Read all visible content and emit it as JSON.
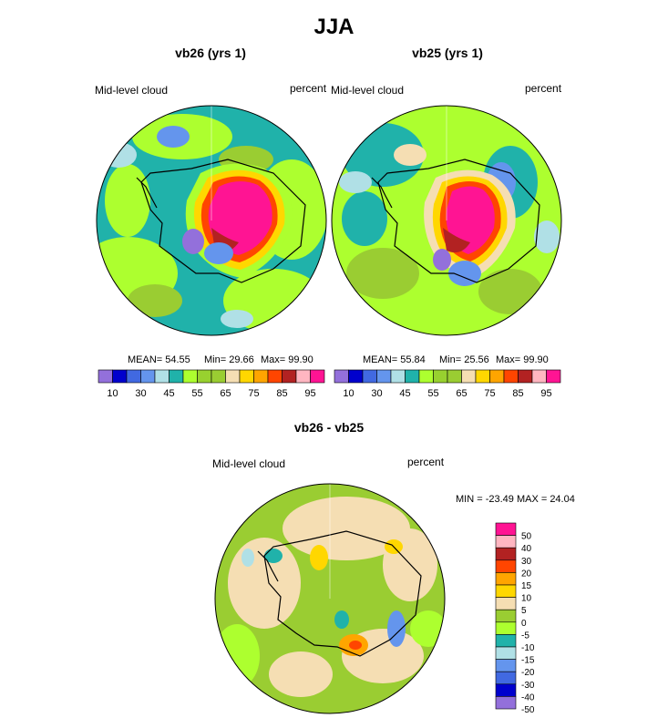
{
  "figure": {
    "title": "JJA",
    "panels": [
      {
        "title": "vb26 (yrs 1)",
        "left_label": "Mid-level cloud",
        "right_label": "percent",
        "stats": {
          "mean": "MEAN=  54.55",
          "min": "Min=  29.66",
          "max": "Max=  99.90"
        }
      },
      {
        "title": "vb25 (yrs 1)",
        "left_label": "Mid-level cloud",
        "right_label": "percent",
        "stats": {
          "mean": "MEAN=  55.84",
          "min": "Min=  25.56",
          "max": "Max=  99.90"
        }
      },
      {
        "title": "vb26 - vb25",
        "left_label": "Mid-level cloud",
        "right_label": "percent",
        "stats": {
          "minmax": "MIN = -23.49 MAX =  24.04"
        }
      }
    ]
  },
  "chart_data": [
    {
      "type": "heatmap",
      "projection": "south-polar-stereographic",
      "title": "vb26 (yrs 1)",
      "variable": "Mid-level cloud",
      "units": "percent",
      "mean": 54.55,
      "min": 29.66,
      "max": 99.9,
      "colorbar": {
        "levels": [
          10,
          15,
          20,
          25,
          30,
          35,
          40,
          45,
          50,
          55,
          60,
          65,
          70,
          75,
          80,
          85,
          90,
          95
        ],
        "tick_labels": [
          "10",
          "30",
          "45",
          "55",
          "65",
          "75",
          "85",
          "95"
        ],
        "colors": [
          "#9370db",
          "#0000cd",
          "#4169e1",
          "#6495ed",
          "#b0e0e6",
          "#20b2aa",
          "#adff2f",
          "#98d12f",
          "#9acd32",
          "#f5deb3",
          "#ffd700",
          "#ffa500",
          "#ff4500",
          "#b22222",
          "#ffb6c1",
          "#ff1493"
        ]
      }
    },
    {
      "type": "heatmap",
      "projection": "south-polar-stereographic",
      "title": "vb25 (yrs 1)",
      "variable": "Mid-level cloud",
      "units": "percent",
      "mean": 55.84,
      "min": 25.56,
      "max": 99.9,
      "colorbar": {
        "levels": [
          10,
          15,
          20,
          25,
          30,
          35,
          40,
          45,
          50,
          55,
          60,
          65,
          70,
          75,
          80,
          85,
          90,
          95
        ],
        "tick_labels": [
          "10",
          "30",
          "45",
          "55",
          "65",
          "75",
          "85",
          "95"
        ],
        "colors": [
          "#9370db",
          "#0000cd",
          "#4169e1",
          "#6495ed",
          "#b0e0e6",
          "#20b2aa",
          "#adff2f",
          "#98d12f",
          "#9acd32",
          "#f5deb3",
          "#ffd700",
          "#ffa500",
          "#ff4500",
          "#b22222",
          "#ffb6c1",
          "#ff1493"
        ]
      }
    },
    {
      "type": "heatmap",
      "projection": "south-polar-stereographic",
      "title": "vb26 - vb25",
      "variable": "Mid-level cloud",
      "units": "percent",
      "min": -23.49,
      "max": 24.04,
      "colorbar": {
        "levels": [
          50,
          40,
          30,
          20,
          15,
          10,
          5,
          0,
          -5,
          -10,
          -15,
          -20,
          -30,
          -40,
          -50
        ],
        "tick_labels": [
          "50",
          "40",
          "30",
          "20",
          "15",
          "10",
          "5",
          "0",
          "-5",
          "-10",
          "-15",
          "-20",
          "-30",
          "-40",
          "-50"
        ],
        "colors": [
          "#ff1493",
          "#ffb6c1",
          "#b22222",
          "#ff4500",
          "#ffa500",
          "#ffd700",
          "#f5deb3",
          "#9acd32",
          "#adff2f",
          "#20b2aa",
          "#b0e0e6",
          "#6495ed",
          "#4169e1",
          "#0000cd",
          "#9370db"
        ]
      }
    }
  ]
}
